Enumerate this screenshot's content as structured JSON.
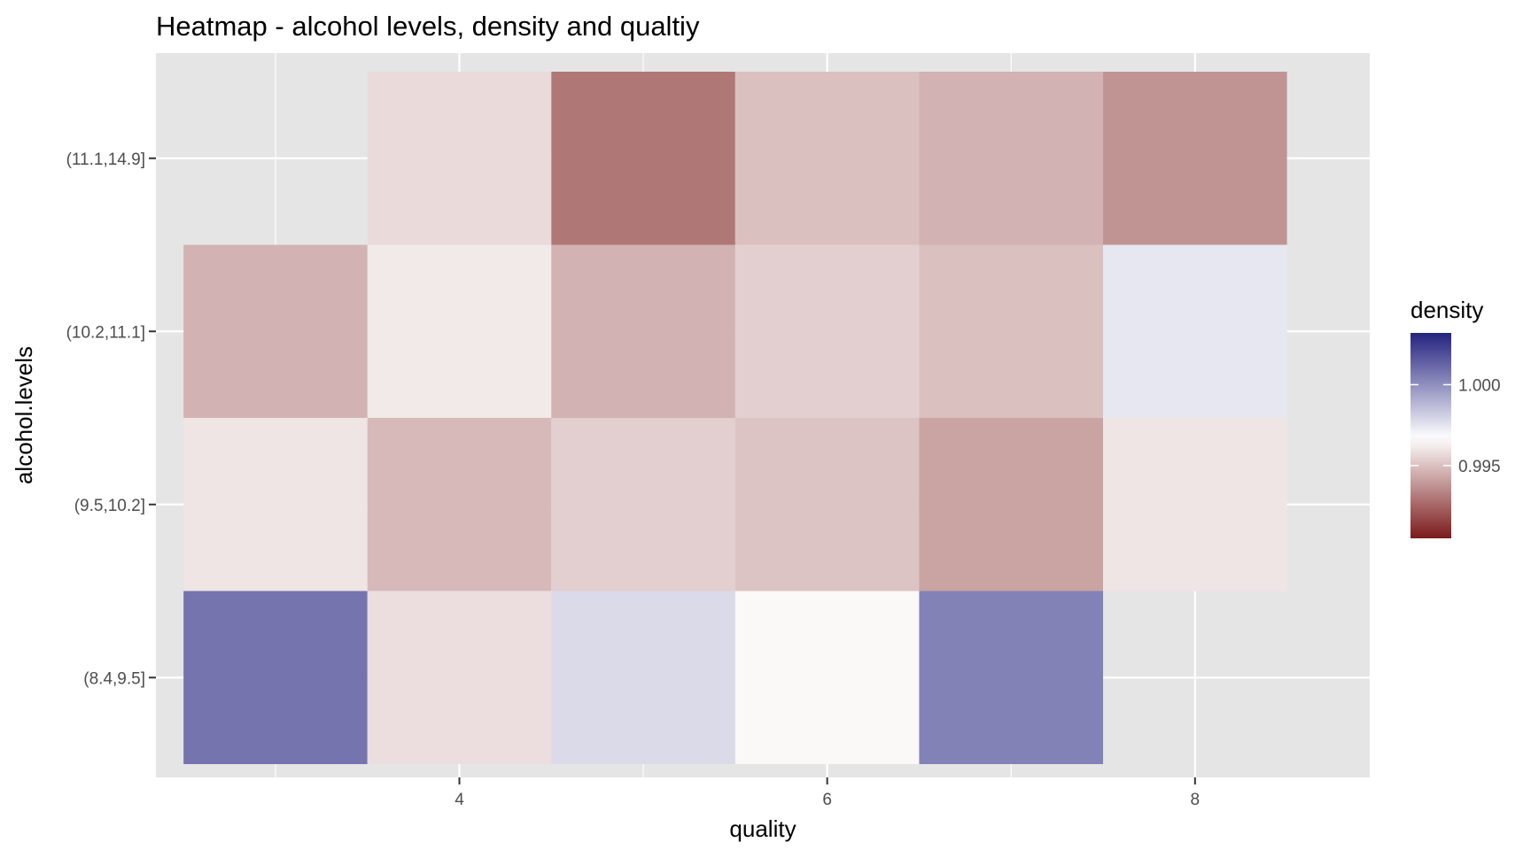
{
  "chart_data": {
    "type": "heatmap",
    "title": "Heatmap - alcohol levels, density and qualtiy",
    "xlabel": "quality",
    "ylabel": "alcohol.levels",
    "x_values": [
      3,
      4,
      5,
      6,
      7,
      8
    ],
    "x_ticks": [
      4,
      6,
      8
    ],
    "xlim": [
      2.35,
      8.95
    ],
    "y_categories": [
      "(8.4,9.5]",
      "(9.5,10.2]",
      "(10.2,11.1]",
      "(11.1,14.9]"
    ],
    "grid": true,
    "legend": {
      "title": "density",
      "position": "right",
      "ticks": [
        0.995,
        1.0
      ],
      "range": [
        0.9905,
        1.0032
      ],
      "low_color": "#7b1b1b",
      "mid_color": "#ffffff",
      "high_color": "#24237f",
      "midpoint": 0.9967
    },
    "cells": [
      {
        "quality": 3,
        "alcohol": "(8.4,9.5]",
        "density": 1.0008
      },
      {
        "quality": 4,
        "alcohol": "(8.4,9.5]",
        "density": 0.9958
      },
      {
        "quality": 5,
        "alcohol": "(8.4,9.5]",
        "density": 0.9978
      },
      {
        "quality": 6,
        "alcohol": "(8.4,9.5]",
        "density": 0.9965
      },
      {
        "quality": 7,
        "alcohol": "(8.4,9.5]",
        "density": 1.0004
      },
      {
        "quality": 3,
        "alcohol": "(9.5,10.2]",
        "density": 0.996
      },
      {
        "quality": 4,
        "alcohol": "(9.5,10.2]",
        "density": 0.9948
      },
      {
        "quality": 5,
        "alcohol": "(9.5,10.2]",
        "density": 0.9954
      },
      {
        "quality": 6,
        "alcohol": "(9.5,10.2]",
        "density": 0.9951
      },
      {
        "quality": 7,
        "alcohol": "(9.5,10.2]",
        "density": 0.9942
      },
      {
        "quality": 8,
        "alcohol": "(9.5,10.2]",
        "density": 0.996
      },
      {
        "quality": 3,
        "alcohol": "(10.2,11.1]",
        "density": 0.9946
      },
      {
        "quality": 4,
        "alcohol": "(10.2,11.1]",
        "density": 0.9961
      },
      {
        "quality": 5,
        "alcohol": "(10.2,11.1]",
        "density": 0.9946
      },
      {
        "quality": 6,
        "alcohol": "(10.2,11.1]",
        "density": 0.9954
      },
      {
        "quality": 7,
        "alcohol": "(10.2,11.1]",
        "density": 0.995
      },
      {
        "quality": 8,
        "alcohol": "(10.2,11.1]",
        "density": 0.9974
      },
      {
        "quality": 4,
        "alcohol": "(11.1,14.9]",
        "density": 0.9957
      },
      {
        "quality": 5,
        "alcohol": "(11.1,14.9]",
        "density": 0.993
      },
      {
        "quality": 6,
        "alcohol": "(11.1,14.9]",
        "density": 0.995
      },
      {
        "quality": 7,
        "alcohol": "(11.1,14.9]",
        "density": 0.9946
      },
      {
        "quality": 8,
        "alcohol": "(11.1,14.9]",
        "density": 0.9938
      }
    ]
  }
}
